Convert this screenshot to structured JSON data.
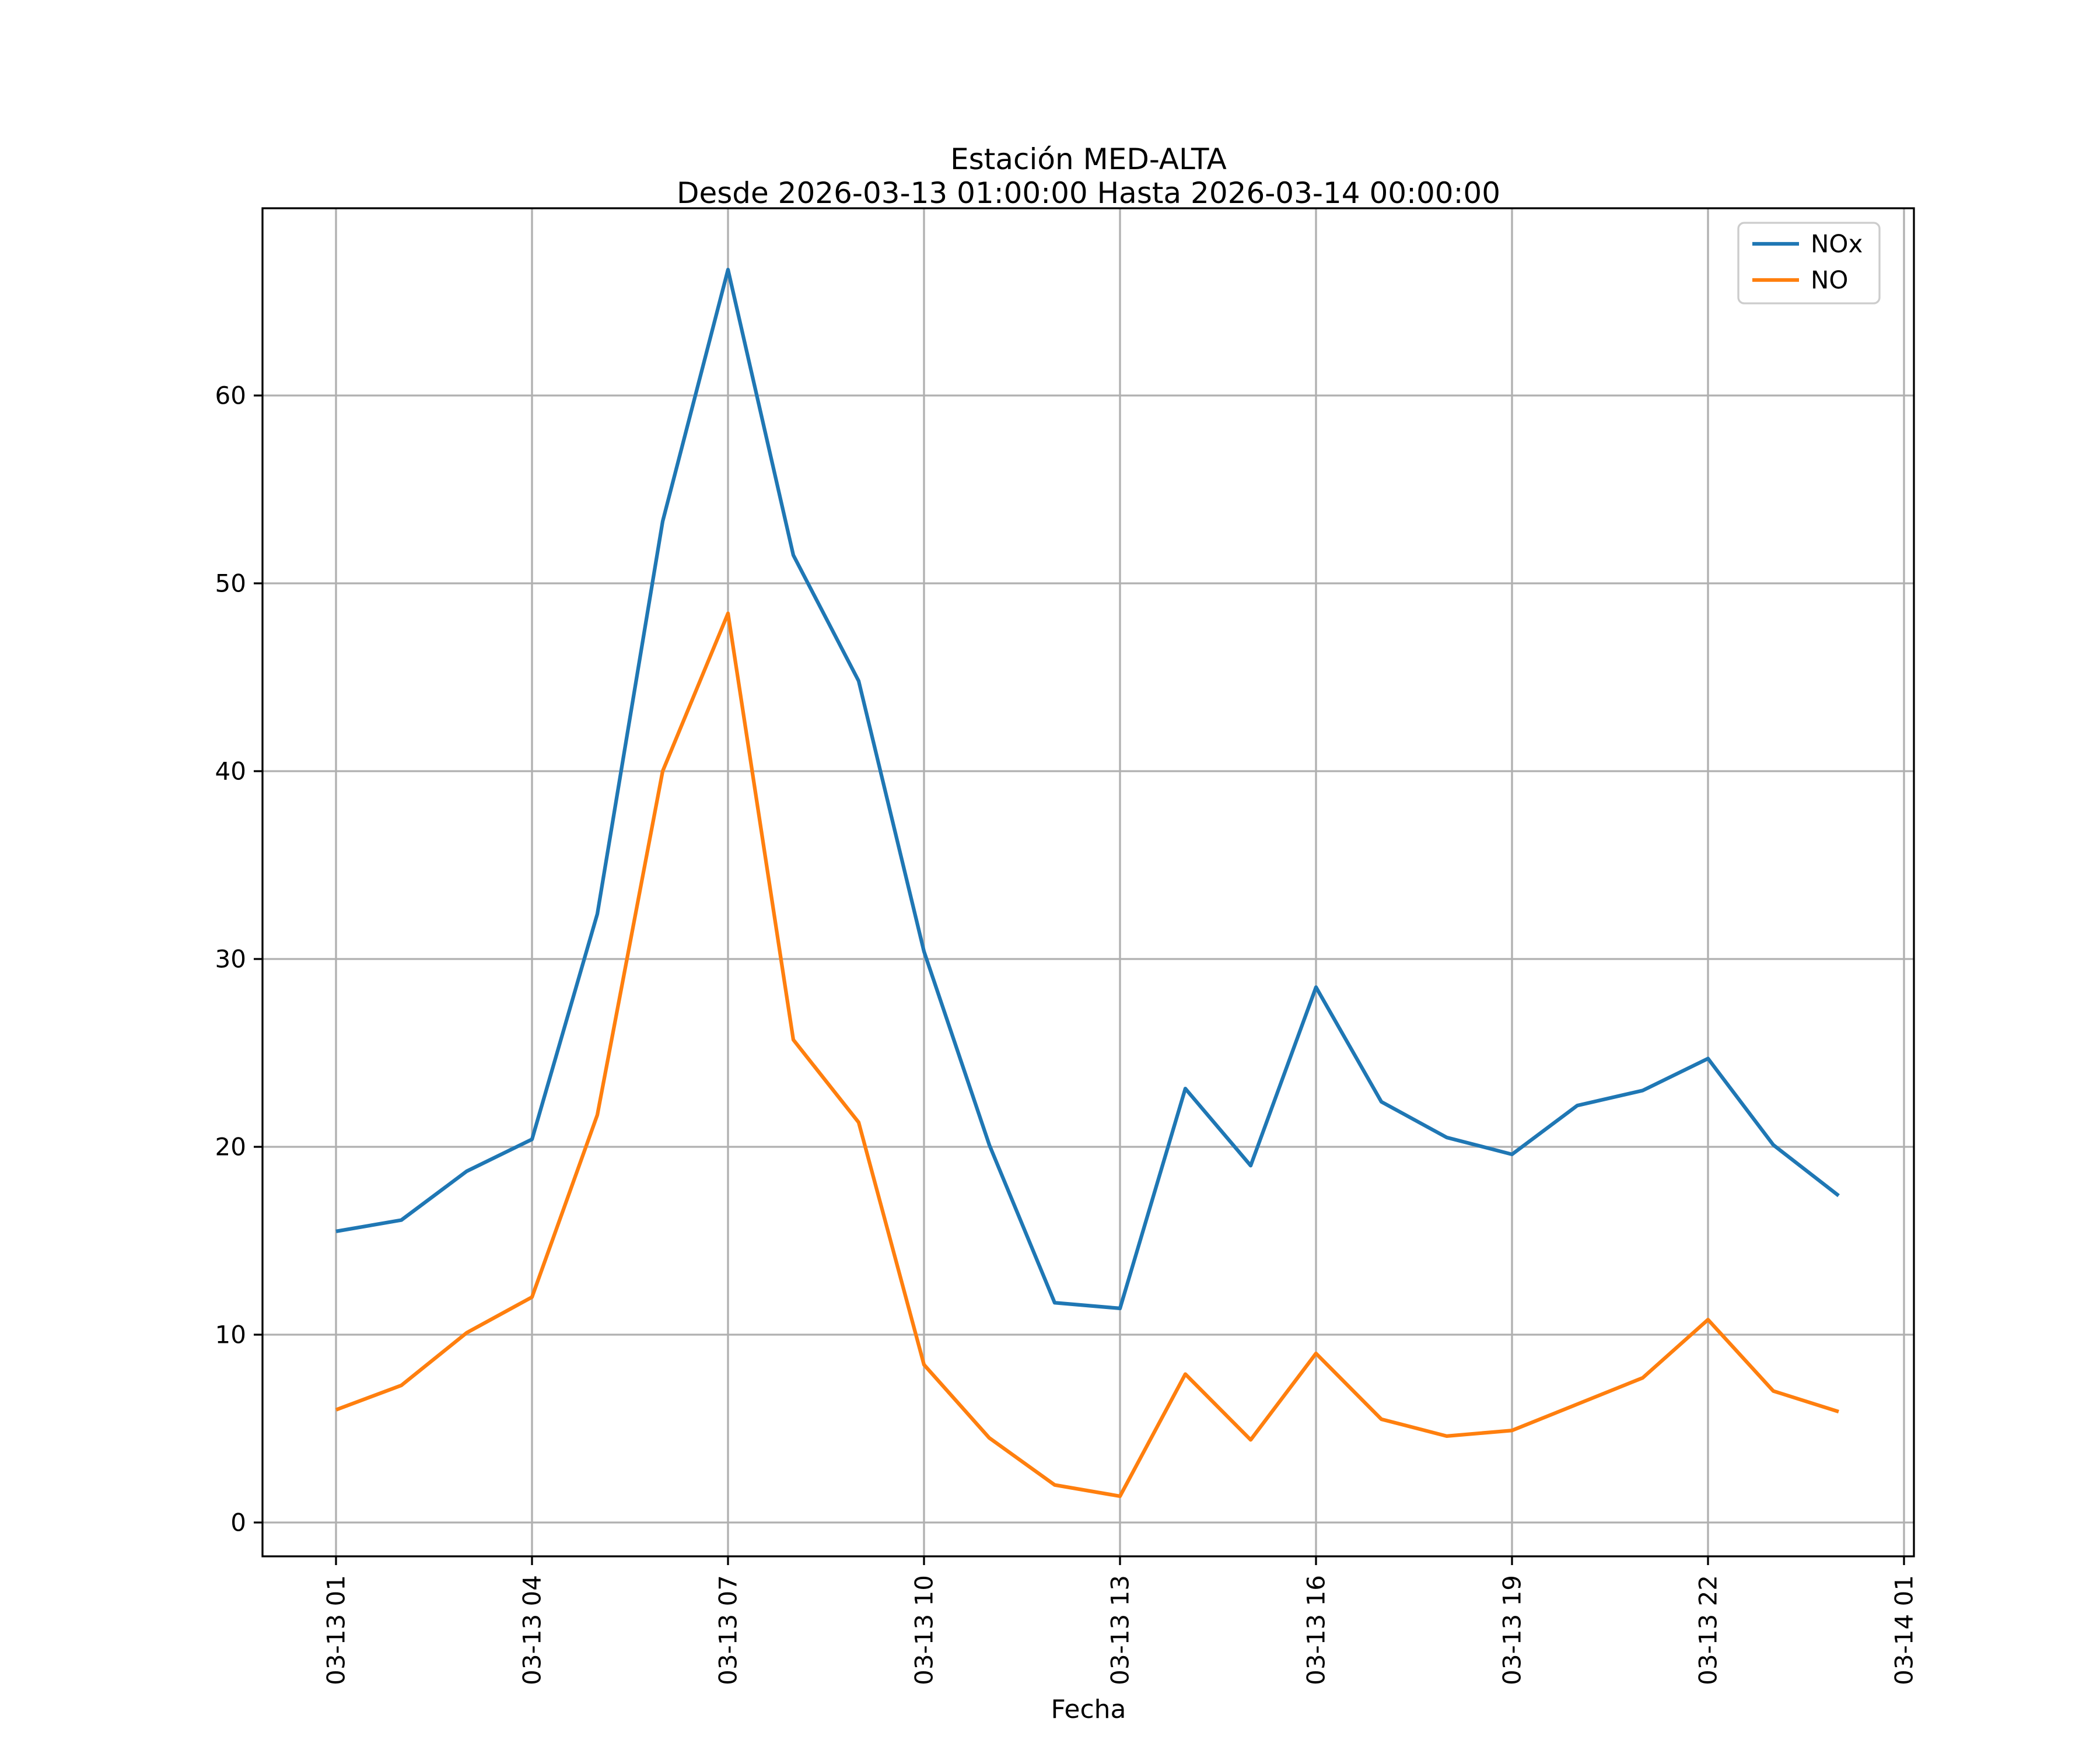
{
  "chart_data": {
    "type": "line",
    "title": "Estación MED-ALTA",
    "subtitle": "Desde 2026-03-13 01:00:00 Hasta 2026-03-14 00:00:00",
    "xlabel": "Fecha",
    "ylabel": "",
    "grid": true,
    "legend_position": "upper right",
    "legend_border_color": "#cccccc",
    "grid_color": "#b0b0b0",
    "axis_color": "#000000",
    "ylim": [
      -1.8,
      70.0
    ],
    "xlim_hours": [
      -0.125,
      25.153
    ],
    "yticks": [
      0,
      10,
      20,
      30,
      40,
      50,
      60
    ],
    "x_tick_hours": [
      1,
      4,
      7,
      10,
      13,
      16,
      19,
      22,
      25
    ],
    "x_tick_labels": [
      "03-13 01",
      "03-13 04",
      "03-13 07",
      "03-13 10",
      "03-13 13",
      "03-13 16",
      "03-13 19",
      "03-13 22",
      "03-14 01"
    ],
    "x_hours": [
      1,
      2,
      3,
      4,
      5,
      6,
      7,
      8,
      9,
      10,
      11,
      12,
      13,
      14,
      15,
      16,
      17,
      18,
      19,
      20,
      21,
      22,
      23,
      24
    ],
    "series": [
      {
        "name": "NOx",
        "color": "#1f77b4",
        "values": [
          15.5,
          16.1,
          18.7,
          20.4,
          32.4,
          53.3,
          66.7,
          51.5,
          44.8,
          30.4,
          20.1,
          11.7,
          11.4,
          23.1,
          19.0,
          28.5,
          22.4,
          20.5,
          19.6,
          22.2,
          23.0,
          24.7,
          20.1,
          17.4
        ]
      },
      {
        "name": "NO",
        "color": "#ff7f0e",
        "values": [
          6.0,
          7.3,
          10.1,
          12.0,
          21.7,
          40.0,
          48.4,
          25.7,
          21.3,
          8.4,
          4.5,
          2.0,
          1.4,
          7.9,
          4.4,
          9.0,
          5.5,
          4.6,
          4.9,
          6.3,
          7.7,
          10.8,
          7.0,
          5.9
        ]
      }
    ]
  }
}
